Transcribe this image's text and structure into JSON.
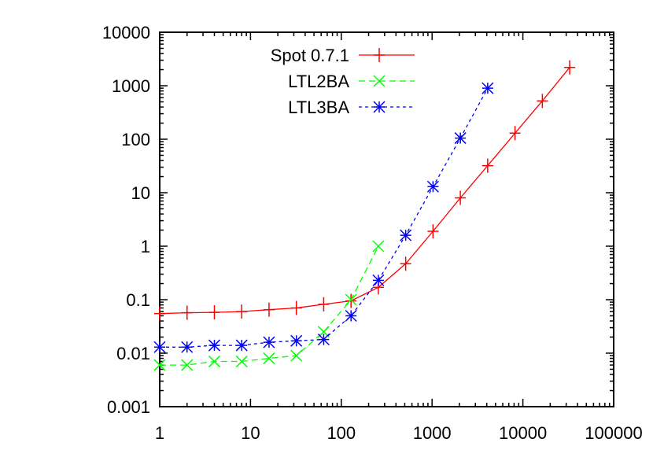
{
  "chart_data": {
    "type": "line",
    "title": "",
    "xlabel": "",
    "ylabel": "",
    "xscale": "log",
    "yscale": "log",
    "xlim": [
      1,
      100000
    ],
    "ylim": [
      0.001,
      10000
    ],
    "grid": false,
    "legend_position": "top-left",
    "x_tick_labels": [
      "1",
      "10",
      "100",
      "1000",
      "10000",
      "100000"
    ],
    "y_tick_labels": [
      "0.001",
      "0.01",
      "0.1",
      "1",
      "10",
      "100",
      "1000",
      "10000"
    ],
    "series": [
      {
        "name": "Spot 0.7.1",
        "color": "#ff0000",
        "marker": "plus",
        "dash": "solid",
        "x": [
          1,
          2,
          4,
          8,
          16,
          32,
          64,
          128,
          256,
          512,
          1024,
          2048,
          4096,
          8192,
          16384,
          32768
        ],
        "y": [
          0.055,
          0.057,
          0.058,
          0.06,
          0.065,
          0.07,
          0.082,
          0.095,
          0.17,
          0.47,
          1.9,
          8,
          32,
          130,
          520,
          2200
        ]
      },
      {
        "name": "LTL2BA",
        "color": "#00ff00",
        "marker": "cross",
        "dash": "dashed",
        "x": [
          1,
          2,
          4,
          8,
          16,
          32,
          64,
          128,
          256
        ],
        "y": [
          0.006,
          0.006,
          0.007,
          0.007,
          0.008,
          0.009,
          0.025,
          0.1,
          1.0
        ]
      },
      {
        "name": "LTL3BA",
        "color": "#0000ff",
        "marker": "star",
        "dash": "dotted",
        "x": [
          1,
          2,
          4,
          8,
          16,
          32,
          64,
          128,
          256,
          512,
          1024,
          2048,
          4096
        ],
        "y": [
          0.013,
          0.013,
          0.014,
          0.014,
          0.016,
          0.017,
          0.018,
          0.05,
          0.23,
          1.6,
          13,
          105,
          900
        ]
      }
    ]
  }
}
